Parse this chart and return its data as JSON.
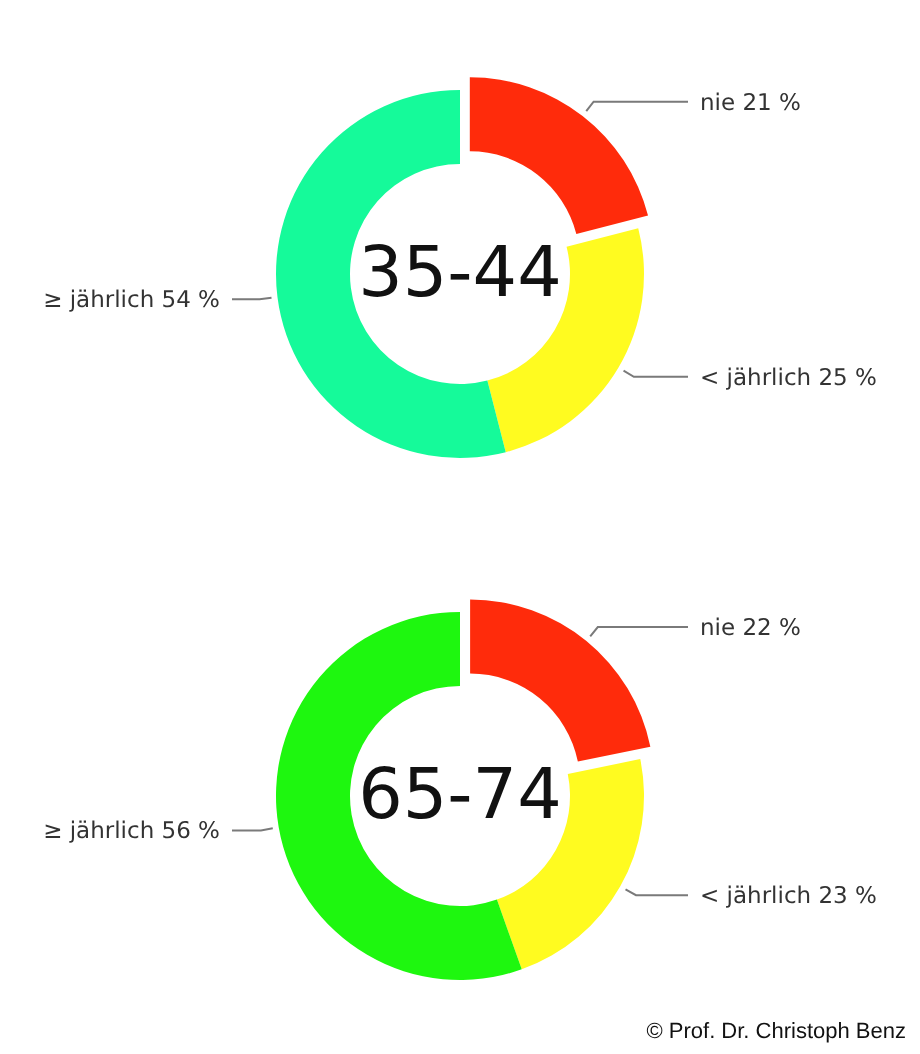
{
  "chart_data": [
    {
      "type": "donut",
      "title": "35-44",
      "categories": [
        "nie",
        "< jährlich",
        "≥ jährlich"
      ],
      "values": [
        21,
        25,
        54
      ],
      "value_labels": [
        "21 %",
        "25 %",
        "54 %"
      ],
      "colors": [
        "#ff2b0b",
        "#fffb20",
        "#15fa9a"
      ]
    },
    {
      "type": "donut",
      "title": "65-74",
      "categories": [
        "nie",
        "< jährlich",
        "≥ jährlich"
      ],
      "values": [
        22,
        23,
        56
      ],
      "value_labels": [
        "22 %",
        "23 %",
        "56 %"
      ],
      "colors": [
        "#ff2b0b",
        "#fffb20",
        "#1ef70f"
      ],
      "annotations": [
        "© Prof. Dr. Christoph Benz"
      ]
    }
  ]
}
